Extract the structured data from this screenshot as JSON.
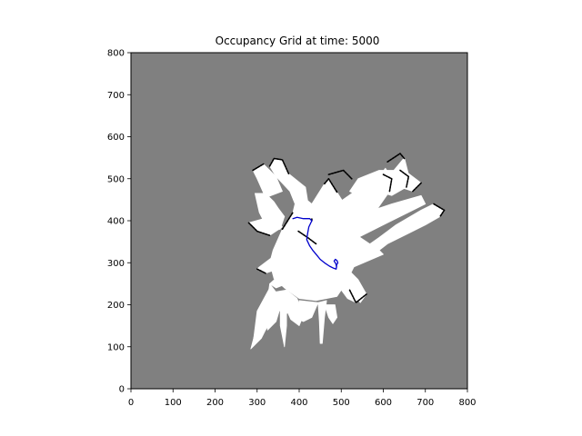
{
  "chart_data": {
    "type": "heatmap",
    "title": "Occupancy Grid at time: 5000",
    "xlabel": "",
    "ylabel": "",
    "xlim": [
      0,
      800
    ],
    "ylim": [
      0,
      800
    ],
    "x_ticks": [
      0,
      100,
      200,
      300,
      400,
      500,
      600,
      700,
      800
    ],
    "y_ticks": [
      0,
      100,
      200,
      300,
      400,
      500,
      600,
      700,
      800
    ],
    "grid": false,
    "colors": {
      "unknown": "#808080",
      "free": "#ffffff",
      "occupied": "#000000",
      "trajectory": "#0000cc"
    },
    "free_regions": [
      [
        [
          345,
          505
        ],
        [
          330,
          530
        ],
        [
          340,
          548
        ],
        [
          360,
          545
        ],
        [
          375,
          512
        ],
        [
          415,
          480
        ],
        [
          420,
          448
        ],
        [
          430,
          440
        ],
        [
          460,
          488
        ],
        [
          470,
          500
        ],
        [
          490,
          468
        ],
        [
          520,
          420
        ],
        [
          545,
          360
        ],
        [
          590,
          330
        ],
        [
          600,
          320
        ],
        [
          530,
          290
        ],
        [
          510,
          250
        ],
        [
          490,
          220
        ],
        [
          440,
          210
        ],
        [
          400,
          215
        ],
        [
          365,
          240
        ],
        [
          340,
          262
        ],
        [
          330,
          300
        ],
        [
          338,
          330
        ],
        [
          360,
          380
        ],
        [
          385,
          420
        ],
        [
          390,
          440
        ],
        [
          378,
          470
        ]
      ],
      [
        [
          290,
          520
        ],
        [
          315,
          535
        ],
        [
          345,
          505
        ],
        [
          360,
          470
        ],
        [
          320,
          455
        ],
        [
          300,
          500
        ]
      ],
      [
        [
          295,
          465
        ],
        [
          320,
          465
        ],
        [
          340,
          445
        ],
        [
          350,
          430
        ],
        [
          365,
          410
        ],
        [
          355,
          380
        ],
        [
          330,
          375
        ],
        [
          320,
          390
        ],
        [
          305,
          420
        ]
      ],
      [
        [
          305,
          290
        ],
        [
          345,
          320
        ],
        [
          360,
          325
        ],
        [
          375,
          310
        ],
        [
          365,
          290
        ],
        [
          320,
          275
        ],
        [
          300,
          285
        ]
      ],
      [
        [
          280,
          395
        ],
        [
          315,
          405
        ],
        [
          345,
          400
        ],
        [
          360,
          385
        ],
        [
          330,
          365
        ],
        [
          300,
          375
        ]
      ],
      [
        [
          490,
          440
        ],
        [
          560,
          490
        ],
        [
          600,
          510
        ],
        [
          620,
          500
        ],
        [
          615,
          470
        ],
        [
          580,
          420
        ],
        [
          530,
          380
        ],
        [
          500,
          350
        ],
        [
          475,
          345
        ],
        [
          460,
          380
        ],
        [
          470,
          420
        ]
      ],
      [
        [
          590,
          505
        ],
        [
          605,
          525
        ],
        [
          615,
          510
        ],
        [
          640,
          520
        ],
        [
          660,
          505
        ],
        [
          655,
          480
        ],
        [
          620,
          460
        ],
        [
          585,
          470
        ]
      ],
      [
        [
          540,
          500
        ],
        [
          590,
          520
        ],
        [
          625,
          520
        ],
        [
          650,
          550
        ],
        [
          660,
          510
        ],
        [
          635,
          490
        ],
        [
          580,
          470
        ],
        [
          540,
          460
        ],
        [
          520,
          470
        ]
      ],
      [
        [
          650,
          520
        ],
        [
          690,
          490
        ],
        [
          670,
          470
        ],
        [
          640,
          480
        ]
      ],
      [
        [
          540,
          325
        ],
        [
          590,
          360
        ],
        [
          630,
          390
        ],
        [
          690,
          425
        ],
        [
          720,
          440
        ],
        [
          745,
          425
        ],
        [
          735,
          410
        ],
        [
          700,
          390
        ],
        [
          660,
          370
        ],
        [
          610,
          345
        ],
        [
          565,
          310
        ],
        [
          530,
          300
        ]
      ],
      [
        [
          520,
          400
        ],
        [
          560,
          420
        ],
        [
          620,
          440
        ],
        [
          655,
          450
        ],
        [
          690,
          460
        ],
        [
          700,
          440
        ],
        [
          660,
          420
        ],
        [
          610,
          395
        ],
        [
          560,
          370
        ],
        [
          520,
          350
        ],
        [
          510,
          375
        ]
      ],
      [
        [
          330,
          250
        ],
        [
          375,
          290
        ],
        [
          395,
          295
        ],
        [
          390,
          265
        ],
        [
          370,
          250
        ],
        [
          345,
          240
        ]
      ],
      [
        [
          510,
          250
        ],
        [
          535,
          235
        ],
        [
          550,
          215
        ],
        [
          535,
          205
        ],
        [
          515,
          215
        ],
        [
          500,
          235
        ]
      ],
      [
        [
          340,
          230
        ],
        [
          345,
          195
        ],
        [
          365,
          175
        ],
        [
          385,
          190
        ],
        [
          395,
          215
        ],
        [
          370,
          235
        ]
      ],
      [
        [
          330,
          250
        ],
        [
          320,
          180
        ],
        [
          325,
          140
        ],
        [
          345,
          160
        ],
        [
          360,
          210
        ]
      ],
      [
        [
          445,
          205
        ],
        [
          448,
          160
        ],
        [
          450,
          108
        ],
        [
          455,
          108
        ],
        [
          460,
          170
        ],
        [
          465,
          210
        ]
      ],
      [
        [
          400,
          210
        ],
        [
          400,
          165
        ],
        [
          410,
          160
        ],
        [
          430,
          170
        ],
        [
          445,
          205
        ]
      ],
      [
        [
          330,
          240
        ],
        [
          300,
          185
        ],
        [
          290,
          105
        ],
        [
          320,
          140
        ],
        [
          340,
          180
        ]
      ],
      [
        [
          335,
          215
        ],
        [
          305,
          170
        ],
        [
          285,
          95
        ],
        [
          310,
          120
        ],
        [
          335,
          170
        ]
      ],
      [
        [
          355,
          210
        ],
        [
          355,
          150
        ],
        [
          365,
          100
        ],
        [
          370,
          150
        ],
        [
          370,
          200
        ]
      ],
      [
        [
          460,
          200
        ],
        [
          470,
          170
        ],
        [
          480,
          155
        ],
        [
          490,
          170
        ],
        [
          485,
          200
        ]
      ],
      [
        [
          360,
          210
        ],
        [
          380,
          165
        ],
        [
          400,
          150
        ],
        [
          410,
          175
        ],
        [
          395,
          215
        ]
      ],
      [
        [
          490,
          260
        ],
        [
          520,
          245
        ],
        [
          545,
          205
        ],
        [
          560,
          225
        ],
        [
          540,
          260
        ],
        [
          510,
          290
        ]
      ]
    ],
    "occupied_edges": [
      [
        [
          330,
          530
        ],
        [
          340,
          548
        ],
        [
          360,
          545
        ],
        [
          375,
          512
        ]
      ],
      [
        [
          290,
          520
        ],
        [
          315,
          535
        ]
      ],
      [
        [
          280,
          395
        ],
        [
          300,
          375
        ],
        [
          330,
          365
        ]
      ],
      [
        [
          600,
          510
        ],
        [
          620,
          500
        ],
        [
          615,
          470
        ]
      ],
      [
        [
          640,
          520
        ],
        [
          660,
          505
        ],
        [
          655,
          480
        ]
      ],
      [
        [
          690,
          490
        ],
        [
          670,
          470
        ]
      ],
      [
        [
          720,
          440
        ],
        [
          745,
          425
        ],
        [
          735,
          410
        ]
      ],
      [
        [
          520,
          235
        ],
        [
          535,
          205
        ],
        [
          560,
          225
        ]
      ],
      [
        [
          300,
          285
        ],
        [
          320,
          275
        ]
      ],
      [
        [
          360,
          380
        ],
        [
          385,
          420
        ]
      ],
      [
        [
          460,
          488
        ],
        [
          470,
          500
        ],
        [
          490,
          468
        ]
      ],
      [
        [
          398,
          375
        ],
        [
          420,
          360
        ],
        [
          440,
          345
        ]
      ],
      [
        [
          470,
          510
        ],
        [
          505,
          520
        ],
        [
          525,
          500
        ]
      ],
      [
        [
          610,
          540
        ],
        [
          640,
          560
        ],
        [
          650,
          548
        ]
      ],
      [
        [
          430,
          400
        ],
        [
          430,
          405
        ]
      ]
    ],
    "trajectory": [
      [
        385,
        405
      ],
      [
        395,
        408
      ],
      [
        410,
        405
      ],
      [
        425,
        405
      ],
      [
        430,
        400
      ],
      [
        423,
        385
      ],
      [
        420,
        370
      ],
      [
        418,
        355
      ],
      [
        425,
        340
      ],
      [
        432,
        330
      ],
      [
        442,
        318
      ],
      [
        450,
        308
      ],
      [
        460,
        300
      ],
      [
        472,
        292
      ],
      [
        482,
        287
      ],
      [
        488,
        285
      ],
      [
        489,
        295
      ],
      [
        492,
        300
      ],
      [
        490,
        305
      ],
      [
        486,
        308
      ],
      [
        483,
        304
      ],
      [
        487,
        298
      ],
      [
        489,
        290
      ]
    ]
  }
}
